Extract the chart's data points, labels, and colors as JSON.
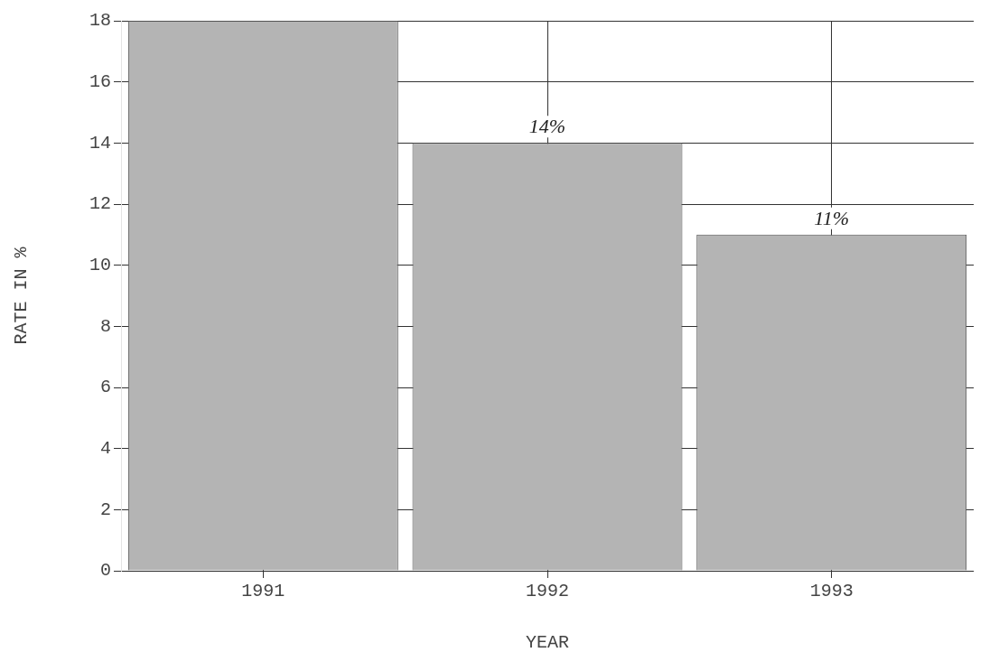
{
  "chart_data": {
    "type": "bar",
    "xlabel": "YEAR",
    "ylabel": "RATE IN %",
    "categories": [
      "1991",
      "1992",
      "1993"
    ],
    "values": [
      18,
      14,
      11
    ],
    "color": "#b4b4b4",
    "ylim": [
      0,
      18
    ],
    "yticks": [
      0,
      2,
      4,
      6,
      8,
      10,
      12,
      14,
      16,
      18
    ],
    "grid": true,
    "annotations": [
      {
        "text": "14%",
        "x": "1992",
        "y": 14
      },
      {
        "text": "11%",
        "x": "1993",
        "y": 11
      }
    ]
  }
}
